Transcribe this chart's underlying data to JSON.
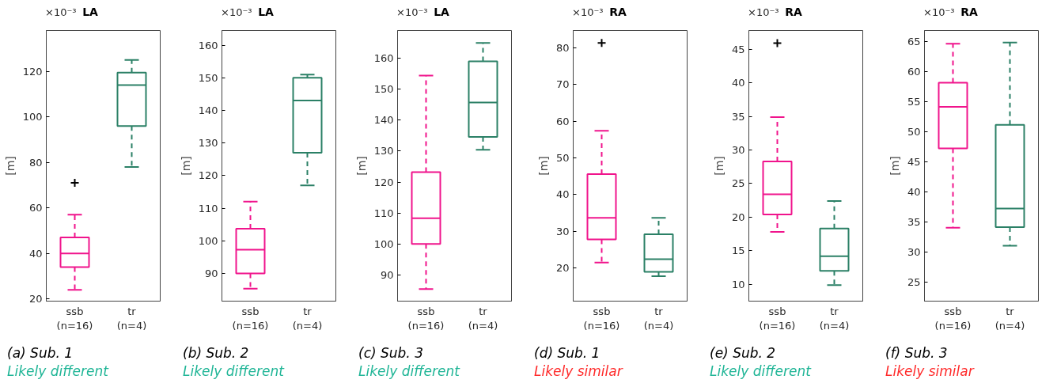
{
  "chart_data": [
    {
      "type": "box",
      "title": "LA",
      "ylabel": "[m]",
      "categories": [
        "ssb\n(n=16)",
        "tr\n(n=4)"
      ],
      "colors": [
        "#f0148c",
        "#2b8066"
      ],
      "marker": "cross",
      "grid": false,
      "ylim": [
        19,
        138
      ],
      "yticks": [
        20,
        40,
        60,
        80,
        100,
        120
      ],
      "annotations": [
        "×10⁻³",
        "(a) Sub. 1",
        "Likely different"
      ],
      "boxes": [
        {
          "low": 24,
          "q1": 34,
          "median": 40,
          "q3": 47,
          "high": 57,
          "outliers": [
            71
          ]
        },
        {
          "low": 78,
          "q1": 96,
          "median": 114,
          "q3": 119.5,
          "high": 125
        }
      ]
    },
    {
      "type": "box",
      "title": "LA",
      "ylabel": "[m]",
      "categories": [
        "ssb\n(n=16)",
        "tr\n(n=4)"
      ],
      "colors": [
        "#f0148c",
        "#2b8066"
      ],
      "marker": "cross",
      "grid": false,
      "ylim": [
        81.5,
        164.5
      ],
      "yticks": [
        90,
        100,
        110,
        120,
        130,
        140,
        150,
        160
      ],
      "annotations": [
        "×10⁻³",
        "(b) Sub. 2",
        "Likely different"
      ],
      "boxes": [
        {
          "low": 85.3,
          "q1": 90,
          "median": 97.3,
          "q3": 103.7,
          "high": 112
        },
        {
          "low": 117,
          "q1": 127,
          "median": 143,
          "q3": 150,
          "high": 151
        }
      ]
    },
    {
      "type": "box",
      "title": "LA",
      "ylabel": "[m]",
      "categories": [
        "ssb\n(n=16)",
        "tr\n(n=4)"
      ],
      "colors": [
        "#f0148c",
        "#2b8066"
      ],
      "marker": "cross",
      "grid": false,
      "ylim": [
        81.5,
        169
      ],
      "yticks": [
        90,
        100,
        110,
        120,
        130,
        140,
        150,
        160
      ],
      "annotations": [
        "×10⁻³",
        "(c) Sub. 3",
        "Likely different"
      ],
      "boxes": [
        {
          "low": 85.4,
          "q1": 100,
          "median": 108.3,
          "q3": 123.2,
          "high": 154.4
        },
        {
          "low": 130.4,
          "q1": 134.6,
          "median": 145.7,
          "q3": 159,
          "high": 165
        }
      ]
    },
    {
      "type": "box",
      "title": "RA",
      "ylabel": "[m]",
      "categories": [
        "ssb\n(n=16)",
        "tr\n(n=4)"
      ],
      "colors": [
        "#f0148c",
        "#2b8066"
      ],
      "marker": "cross",
      "grid": false,
      "ylim": [
        11,
        84.7
      ],
      "yticks": [
        20,
        30,
        40,
        50,
        60,
        70,
        80
      ],
      "annotations": [
        "×10⁻³",
        "(d) Sub. 1",
        "Likely similar"
      ],
      "boxes": [
        {
          "low": 21.5,
          "q1": 27.8,
          "median": 33.7,
          "q3": 45.6,
          "high": 57.4,
          "outliers": [
            81.3
          ]
        },
        {
          "low": 17.8,
          "q1": 19,
          "median": 22.4,
          "q3": 29.2,
          "high": 33.7
        }
      ]
    },
    {
      "type": "box",
      "title": "RA",
      "ylabel": "[m]",
      "categories": [
        "ssb\n(n=16)",
        "tr\n(n=4)"
      ],
      "colors": [
        "#f0148c",
        "#2b8066"
      ],
      "marker": "cross",
      "grid": false,
      "ylim": [
        7.5,
        47.8
      ],
      "yticks": [
        10,
        15,
        20,
        25,
        30,
        35,
        40,
        45
      ],
      "annotations": [
        "×10⁻³",
        "(e) Sub. 2",
        "Likely different"
      ],
      "boxes": [
        {
          "low": 17.8,
          "q1": 20.4,
          "median": 23.4,
          "q3": 28.3,
          "high": 34.9,
          "outliers": [
            45.9
          ]
        },
        {
          "low": 9.9,
          "q1": 12,
          "median": 14.2,
          "q3": 18.3,
          "high": 22.4
        }
      ]
    },
    {
      "type": "box",
      "title": "RA",
      "ylabel": "[m]",
      "categories": [
        "ssb\n(n=16)",
        "tr\n(n=4)"
      ],
      "colors": [
        "#f0148c",
        "#2b8066"
      ],
      "marker": "cross",
      "grid": false,
      "ylim": [
        21.9,
        66.9
      ],
      "yticks": [
        25,
        30,
        35,
        40,
        45,
        50,
        55,
        60,
        65
      ],
      "annotations": [
        "×10⁻³",
        "(f) Sub. 3",
        "Likely similar"
      ],
      "boxes": [
        {
          "low": 34.1,
          "q1": 47.3,
          "median": 54.2,
          "q3": 58.2,
          "high": 64.7
        },
        {
          "low": 31.1,
          "q1": 34.2,
          "median": 37.3,
          "q3": 51.2,
          "high": 64.9
        }
      ]
    }
  ]
}
